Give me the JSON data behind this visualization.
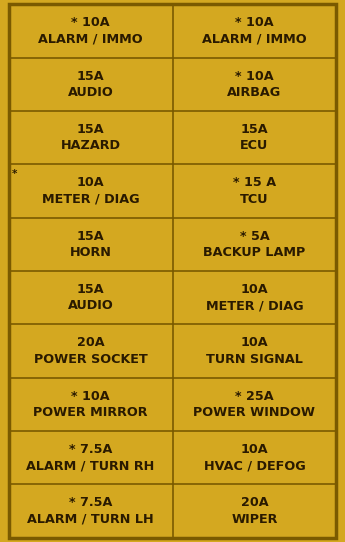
{
  "background_color": "#D4A820",
  "border_color": "#7A5A00",
  "line_color": "#7A5A00",
  "text_color": "#2A1A00",
  "rows": [
    {
      "left": "* 10A\nALARM / IMMO",
      "right": "* 10A\nALARM / IMMO",
      "left_star": false,
      "right_star": false
    },
    {
      "left": "15A\nAUDIO",
      "right": "* 10A\nAIRBAG",
      "left_star": false,
      "right_star": false
    },
    {
      "left": "15A\nHAZARD",
      "right": "15A\nECU",
      "left_star": false,
      "right_star": false
    },
    {
      "left": "10A\nMETER / DIAG",
      "right": "* 15 A\nTCU",
      "left_star": true,
      "right_star": false
    },
    {
      "left": "15A\nHORN",
      "right": "* 5A\nBACKUP LAMP",
      "left_star": false,
      "right_star": false
    },
    {
      "left": "15A\nAUDIO",
      "right": "10A\nMETER / DIAG",
      "left_star": false,
      "right_star": false
    },
    {
      "left": "20A\nPOWER SOCKET",
      "right": "10A\nTURN SIGNAL",
      "left_star": false,
      "right_star": false
    },
    {
      "left": "* 10A\nPOWER MIRROR",
      "right": "* 25A\nPOWER WINDOW",
      "left_star": false,
      "right_star": false
    },
    {
      "left": "* 7.5A\nALARM / TURN RH",
      "right": "10A\nHVAC / DEFOG",
      "left_star": false,
      "right_star": false
    },
    {
      "left": "* 7.5A\nALARM / TURN LH",
      "right": "20A\nWIPER",
      "left_star": false,
      "right_star": false
    }
  ],
  "fig_width": 3.45,
  "fig_height": 5.42,
  "dpi": 100,
  "font_size": 9.2,
  "star_font_size": 7.5,
  "outer_border_lw": 2.5,
  "inner_line_lw": 1.2
}
